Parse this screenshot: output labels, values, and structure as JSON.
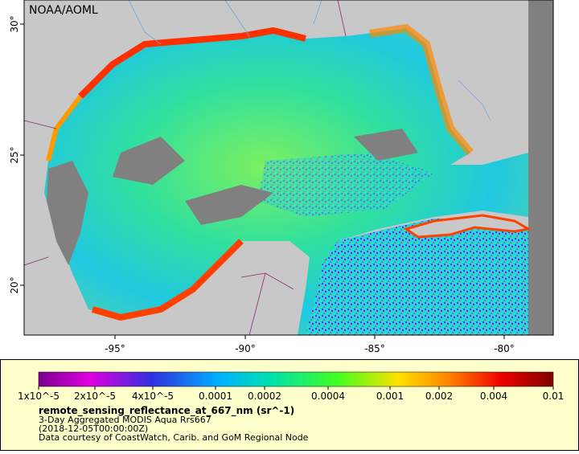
{
  "map": {
    "label": "NOAA/AOML",
    "x_ticks": [
      "-95°",
      "-90°",
      "-85°",
      "-80°"
    ],
    "y_ticks": [
      "30°",
      "25°",
      "20°"
    ]
  },
  "legend": {
    "scale_labels": [
      "1x10^-5",
      "2x10^-5",
      "4x10^-5",
      "0.0001",
      "0.0002",
      "0.0004",
      "0.001",
      "0.002",
      "0.004",
      "0.01"
    ],
    "variable": "remote_sensing_reflectance_at_667_nm (sr^-1)",
    "lines": [
      "3-Day Aggregated MODIS Aqua Rrs667",
      "(2018-12-05T00:00:00Z)",
      "Data courtesy of CoastWatch, Carib. and GoM Regional Node"
    ]
  }
}
